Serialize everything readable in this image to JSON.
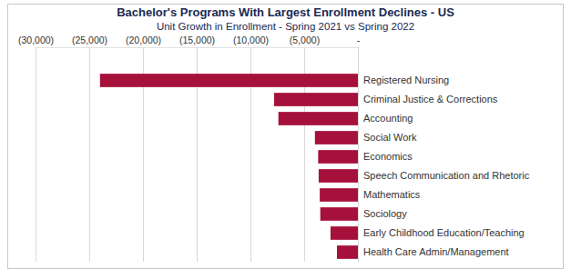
{
  "chart_data": {
    "type": "bar",
    "orientation": "horizontal",
    "title": "Bachelor's Programs With Largest Enrollment Declines - US",
    "subtitle": "Unit Growth in Enrollment - Spring 2021 vs Spring 2022",
    "categories": [
      "Registered Nursing",
      "Criminal Justice & Corrections",
      "Accounting",
      "Social Work",
      "Economics",
      "Speech Communication and Rhetoric",
      "Mathematics",
      "Sociology",
      "Early Childhood Education/Teaching",
      "Health Care Admin/Management"
    ],
    "values": [
      -24000,
      -7800,
      -7400,
      -4000,
      -3700,
      -3650,
      -3550,
      -3500,
      -2550,
      -1950
    ],
    "color": "#a6113c",
    "xlim": [
      -30000,
      0
    ],
    "xticks": [
      {
        "value": -30000,
        "label": "(30,000)"
      },
      {
        "value": -25000,
        "label": "(25,000)"
      },
      {
        "value": -20000,
        "label": "(20,000)"
      },
      {
        "value": -15000,
        "label": "(15,000)"
      },
      {
        "value": -10000,
        "label": "(10,000)"
      },
      {
        "value": -5000,
        "label": "(5,000)"
      },
      {
        "value": 0,
        "label": "-"
      }
    ],
    "grid": true
  }
}
